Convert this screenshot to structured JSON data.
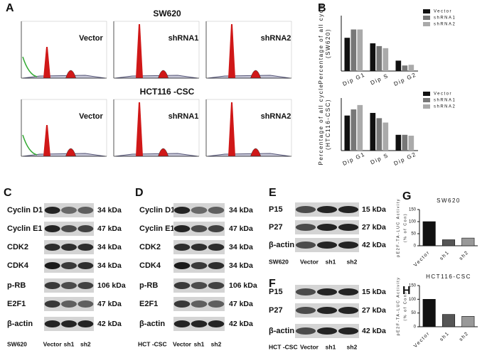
{
  "panel_letters": [
    "A",
    "B",
    "C",
    "D",
    "E",
    "F",
    "G",
    "H"
  ],
  "flow": [
    {
      "title": "SW620",
      "labels": [
        "Vector",
        "shRNA1",
        "shRNA2"
      ]
    },
    {
      "title": "HCT116  -CSC",
      "labels": [
        "Vector",
        "shRNA1",
        "shRNA2"
      ]
    }
  ],
  "blots": [
    {
      "bands": [
        {
          "name": "Cyclin D1",
          "size": "34 kDa"
        },
        {
          "name": "Cyclin E1",
          "size": "47 kDa"
        },
        {
          "name": "CDK2",
          "size": "34 kDa"
        },
        {
          "name": "CDK4",
          "size": "34 kDa"
        },
        {
          "name": "p-RB",
          "size": "106 kDa"
        },
        {
          "name": "E2F1",
          "size": "47 kDa"
        },
        {
          "name": "β-actin",
          "size": "42 kDa"
        }
      ],
      "cell_line": "SW620",
      "lanes": [
        "Vector",
        "sh1",
        "sh2"
      ]
    },
    {
      "bands": [
        {
          "name": "Cyclin D1",
          "size": "34 kDa"
        },
        {
          "name": "Cyclin E1",
          "size": "47 kDa"
        },
        {
          "name": "CDK2",
          "size": "34 kDa"
        },
        {
          "name": "CDK4",
          "size": "34 kDa"
        },
        {
          "name": "p-RB",
          "size": "106 kDa"
        },
        {
          "name": "E2F1",
          "size": "47 kDa"
        },
        {
          "name": "β-actin",
          "size": "42 kDa"
        }
      ],
      "cell_line": "HCT -CSC",
      "lanes": [
        "Vector",
        "sh1",
        "sh2"
      ]
    },
    {
      "bands": [
        {
          "name": "P15",
          "size": "15 kDa"
        },
        {
          "name": "P27",
          "size": "27 kDa"
        },
        {
          "name": "β-actin",
          "size": "42 kDa"
        }
      ],
      "cell_line": "SW620",
      "lanes": [
        "Vector",
        "sh1",
        "sh2"
      ]
    },
    {
      "bands": [
        {
          "name": "P15",
          "size": "15 kDa"
        },
        {
          "name": "P27",
          "size": "27 kDa"
        },
        {
          "name": "β-actin",
          "size": "42 kDa"
        }
      ],
      "cell_line": "HCT -CSC",
      "lanes": [
        "Vector",
        "sh1",
        "sh2"
      ]
    }
  ],
  "chart_data": [
    {
      "type": "bar",
      "ylabel": [
        "Percentage of all cycle",
        "(SW620)"
      ],
      "categories": [
        "Dip G1",
        "Dip S",
        "Dip G2"
      ],
      "series": [
        {
          "name": "Vector",
          "color": "#111111",
          "values": [
            48,
            40,
            15
          ]
        },
        {
          "name": "shRNA1",
          "color": "#777777",
          "values": [
            60,
            36,
            8
          ]
        },
        {
          "name": "shRNA2",
          "color": "#aaaaaa",
          "values": [
            60,
            33,
            9
          ]
        }
      ],
      "ylim": [
        0,
        80
      ]
    },
    {
      "type": "bar",
      "ylabel": [
        "Percentage of all cycle",
        "(HTC116-CSC)"
      ],
      "categories": [
        "Dip G1",
        "Dip S",
        "Dip G2"
      ],
      "series": [
        {
          "name": "Vector",
          "color": "#111111",
          "values": [
            40,
            43,
            18
          ]
        },
        {
          "name": "shRNA1",
          "color": "#777777",
          "values": [
            47,
            37,
            18
          ]
        },
        {
          "name": "shRNA2",
          "color": "#aaaaaa",
          "values": [
            52,
            32,
            17
          ]
        }
      ],
      "ylim": [
        0,
        60
      ]
    },
    {
      "type": "bar",
      "title": "SW620",
      "ylabel": [
        "pE2F-TA-LUC Activity",
        "(% of Con)"
      ],
      "categories": [
        "Vector",
        "sh1",
        "sh2"
      ],
      "values": [
        100,
        25,
        32
      ],
      "colors": [
        "#111111",
        "#555555",
        "#999999"
      ],
      "ylim": [
        0,
        150
      ],
      "yticks": [
        0,
        50,
        100,
        150
      ]
    },
    {
      "type": "bar",
      "title": "HCT116-CSC",
      "ylabel": [
        "pE2F-TA-LUC Activity",
        "(% of Con)"
      ],
      "categories": [
        "Vector",
        "sh1",
        "sh2"
      ],
      "values": [
        100,
        45,
        38
      ],
      "colors": [
        "#111111",
        "#555555",
        "#999999"
      ],
      "ylim": [
        0,
        150
      ],
      "yticks": [
        0,
        50,
        100,
        150
      ]
    }
  ]
}
